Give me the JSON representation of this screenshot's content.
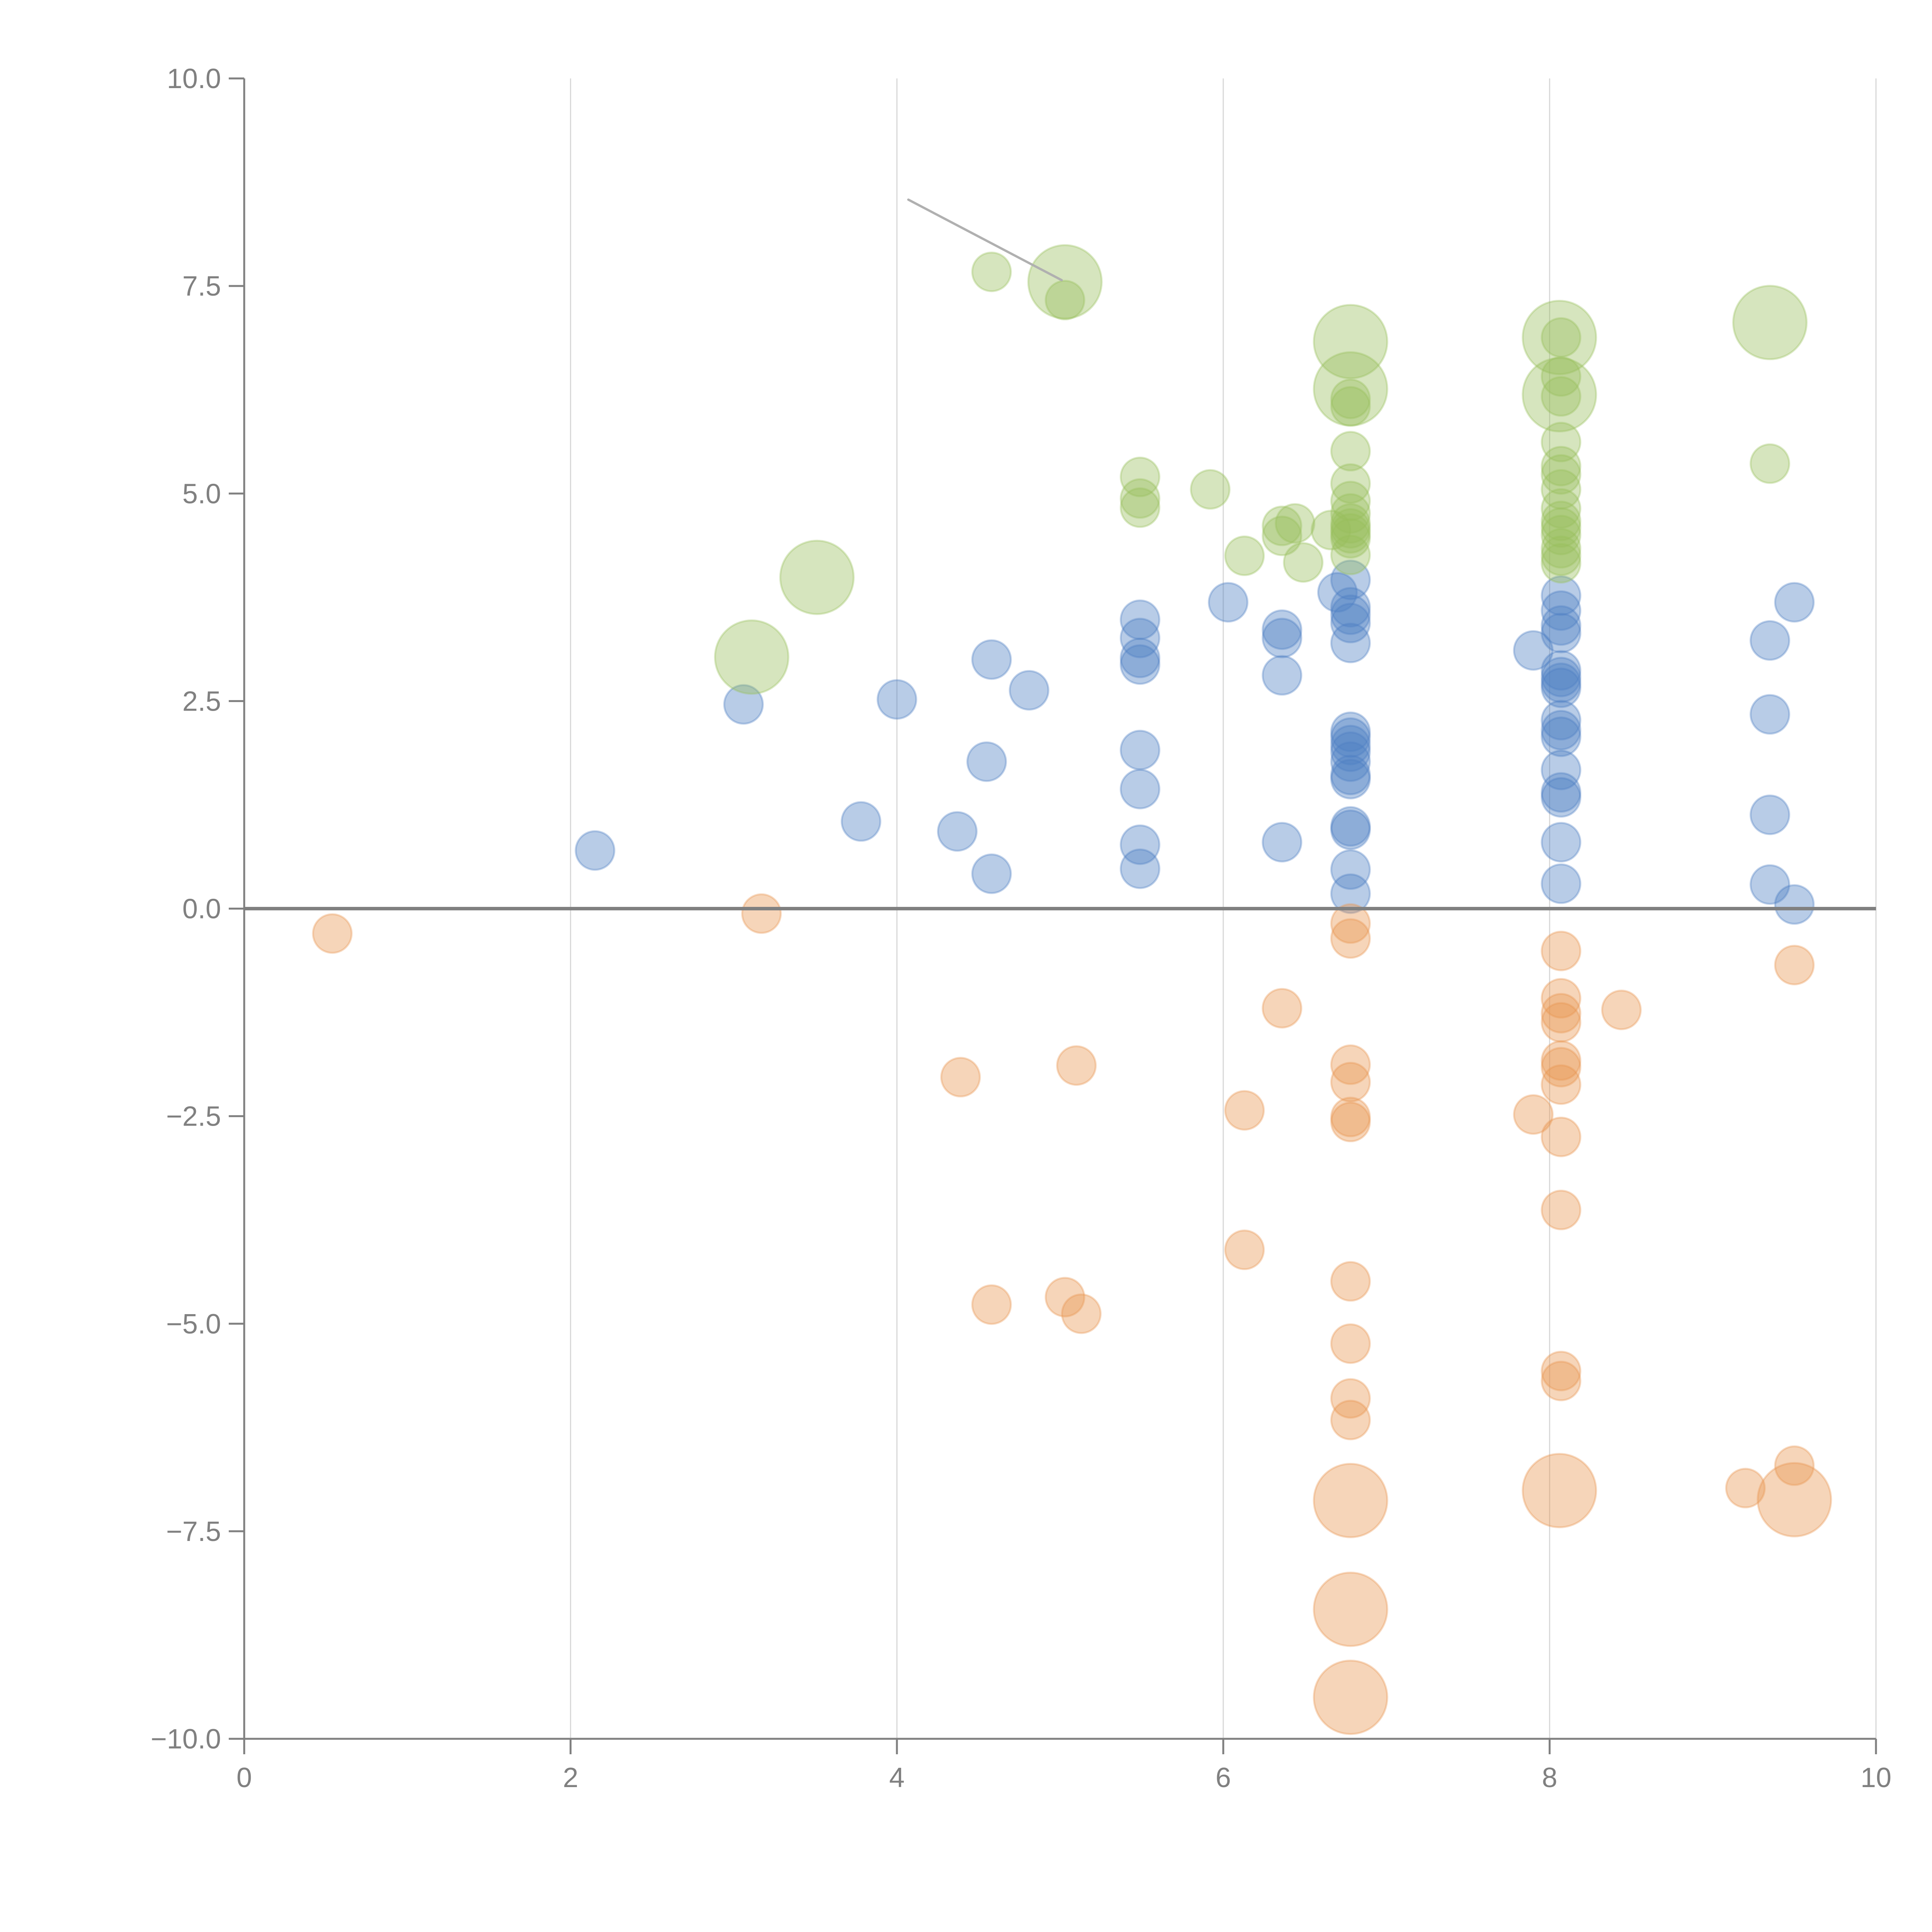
{
  "chart_data": {
    "type": "scatter",
    "title": "",
    "xlabel": "",
    "ylabel": "",
    "xlim": [
      0,
      10
    ],
    "ylim": [
      -10,
      10
    ],
    "x_ticks": [
      "0",
      "2",
      "4",
      "6",
      "8",
      "10"
    ],
    "x_tick_values": [
      0,
      2,
      4,
      6,
      8,
      10
    ],
    "y_ticks": [
      "10.0",
      "7.5",
      "5.0",
      "2.5",
      "0.0",
      "−2.5",
      "−5.0",
      "−7.5",
      "−10.0"
    ],
    "y_tick_values": [
      10,
      7.5,
      5,
      2.5,
      0,
      -2.5,
      -5,
      -7.5,
      -10
    ],
    "grid": "vertical",
    "zero_line": true,
    "legend": "none",
    "size_note": "size: 1 = small bubble, 2 = large bubble",
    "series": [
      {
        "name": "blue",
        "color": "#4e7fc4",
        "points": [
          [
            2.15,
            0.7,
            1
          ],
          [
            3.06,
            2.46,
            1
          ],
          [
            3.78,
            1.05,
            1
          ],
          [
            4.0,
            2.52,
            1
          ],
          [
            4.37,
            0.93,
            1
          ],
          [
            4.55,
            1.77,
            1
          ],
          [
            4.58,
            3.0,
            1
          ],
          [
            4.58,
            0.42,
            1
          ],
          [
            4.81,
            2.63,
            1
          ],
          [
            5.49,
            3.48,
            1
          ],
          [
            5.49,
            3.26,
            1
          ],
          [
            5.49,
            3.02,
            1
          ],
          [
            5.49,
            2.94,
            1
          ],
          [
            5.49,
            1.91,
            1
          ],
          [
            5.49,
            1.44,
            1
          ],
          [
            5.49,
            0.77,
            1
          ],
          [
            5.49,
            0.48,
            1
          ],
          [
            6.03,
            3.69,
            1
          ],
          [
            6.36,
            3.36,
            1
          ],
          [
            6.36,
            3.26,
            1
          ],
          [
            6.36,
            2.81,
            1
          ],
          [
            6.36,
            0.8,
            1
          ],
          [
            6.7,
            3.81,
            1
          ],
          [
            6.78,
            3.96,
            1
          ],
          [
            6.78,
            3.63,
            1
          ],
          [
            6.78,
            3.54,
            1
          ],
          [
            6.78,
            3.44,
            1
          ],
          [
            6.78,
            3.2,
            1
          ],
          [
            6.78,
            2.13,
            1
          ],
          [
            6.78,
            2.06,
            1
          ],
          [
            6.78,
            1.97,
            1
          ],
          [
            6.78,
            1.89,
            1
          ],
          [
            6.78,
            1.77,
            1
          ],
          [
            6.78,
            1.61,
            1
          ],
          [
            6.78,
            1.56,
            1
          ],
          [
            6.78,
            0.99,
            1
          ],
          [
            6.78,
            0.95,
            1
          ],
          [
            6.78,
            0.47,
            1
          ],
          [
            6.78,
            0.18,
            1
          ],
          [
            7.9,
            3.11,
            1
          ],
          [
            8.07,
            3.77,
            1
          ],
          [
            8.07,
            3.59,
            1
          ],
          [
            8.07,
            3.41,
            1
          ],
          [
            8.07,
            3.32,
            1
          ],
          [
            8.07,
            2.87,
            1
          ],
          [
            8.07,
            2.79,
            1
          ],
          [
            8.07,
            2.72,
            1
          ],
          [
            8.07,
            2.66,
            1
          ],
          [
            8.07,
            2.27,
            1
          ],
          [
            8.07,
            2.15,
            1
          ],
          [
            8.07,
            2.07,
            1
          ],
          [
            8.07,
            1.67,
            1
          ],
          [
            8.07,
            1.4,
            1
          ],
          [
            8.07,
            1.34,
            1
          ],
          [
            8.07,
            0.8,
            1
          ],
          [
            8.07,
            0.3,
            1
          ],
          [
            9.35,
            3.23,
            1
          ],
          [
            9.35,
            2.34,
            1
          ],
          [
            9.35,
            1.13,
            1
          ],
          [
            9.35,
            0.29,
            1
          ],
          [
            9.5,
            3.69,
            1
          ],
          [
            9.5,
            0.05,
            1
          ]
        ]
      },
      {
        "name": "orange",
        "color": "#e8954f",
        "points": [
          [
            0.54,
            -0.3,
            1
          ],
          [
            3.17,
            -0.06,
            1
          ],
          [
            4.39,
            -2.03,
            1
          ],
          [
            4.58,
            -4.77,
            1
          ],
          [
            5.03,
            -4.68,
            1
          ],
          [
            5.1,
            -1.89,
            1
          ],
          [
            5.13,
            -4.88,
            1
          ],
          [
            6.13,
            -2.43,
            1
          ],
          [
            6.13,
            -4.11,
            1
          ],
          [
            6.36,
            -1.2,
            1
          ],
          [
            6.78,
            -0.18,
            1
          ],
          [
            6.78,
            -0.36,
            1
          ],
          [
            6.78,
            -1.88,
            1
          ],
          [
            6.78,
            -2.09,
            1
          ],
          [
            6.78,
            -2.51,
            1
          ],
          [
            6.78,
            -2.57,
            1
          ],
          [
            6.78,
            -4.49,
            1
          ],
          [
            6.78,
            -5.24,
            1
          ],
          [
            6.78,
            -5.9,
            1
          ],
          [
            6.78,
            -6.16,
            1
          ],
          [
            6.78,
            -7.13,
            2
          ],
          [
            6.78,
            -8.44,
            2
          ],
          [
            6.78,
            -9.5,
            2
          ],
          [
            7.9,
            -2.48,
            1
          ],
          [
            8.07,
            -0.51,
            1
          ],
          [
            8.07,
            -1.08,
            1
          ],
          [
            8.07,
            -1.26,
            1
          ],
          [
            8.07,
            -1.37,
            1
          ],
          [
            8.07,
            -1.83,
            1
          ],
          [
            8.07,
            -1.91,
            1
          ],
          [
            8.07,
            -2.12,
            1
          ],
          [
            8.07,
            -2.75,
            1
          ],
          [
            8.07,
            -3.63,
            1
          ],
          [
            8.07,
            -5.57,
            1
          ],
          [
            8.07,
            -5.69,
            1
          ],
          [
            8.06,
            -7.01,
            2
          ],
          [
            8.44,
            -1.22,
            1
          ],
          [
            9.2,
            -6.98,
            1
          ],
          [
            9.5,
            -0.68,
            1
          ],
          [
            9.5,
            -6.71,
            1
          ],
          [
            9.5,
            -7.12,
            2
          ]
        ]
      },
      {
        "name": "green",
        "color": "#98bf5c",
        "points": [
          [
            3.11,
            3.03,
            2
          ],
          [
            3.51,
            3.99,
            2
          ],
          [
            4.58,
            7.67,
            1
          ],
          [
            5.03,
            7.33,
            1
          ],
          [
            5.03,
            7.55,
            2
          ],
          [
            5.49,
            5.2,
            1
          ],
          [
            5.49,
            4.94,
            1
          ],
          [
            5.49,
            4.83,
            1
          ],
          [
            5.92,
            5.05,
            1
          ],
          [
            6.13,
            4.25,
            1
          ],
          [
            6.36,
            4.61,
            1
          ],
          [
            6.36,
            4.49,
            1
          ],
          [
            6.44,
            4.64,
            1
          ],
          [
            6.49,
            4.17,
            1
          ],
          [
            6.66,
            4.56,
            1
          ],
          [
            6.78,
            6.83,
            2
          ],
          [
            6.78,
            6.26,
            2
          ],
          [
            6.78,
            6.14,
            1
          ],
          [
            6.78,
            6.05,
            1
          ],
          [
            6.78,
            5.51,
            1
          ],
          [
            6.78,
            5.12,
            1
          ],
          [
            6.78,
            4.91,
            1
          ],
          [
            6.78,
            4.76,
            1
          ],
          [
            6.78,
            4.64,
            1
          ],
          [
            6.78,
            4.58,
            1
          ],
          [
            6.78,
            4.52,
            1
          ],
          [
            6.78,
            4.46,
            1
          ],
          [
            6.78,
            4.26,
            1
          ],
          [
            8.06,
            6.88,
            2
          ],
          [
            8.06,
            6.19,
            2
          ],
          [
            8.07,
            6.88,
            1
          ],
          [
            8.07,
            6.41,
            1
          ],
          [
            8.07,
            6.17,
            1
          ],
          [
            8.07,
            5.62,
            1
          ],
          [
            8.07,
            5.33,
            1
          ],
          [
            8.07,
            5.23,
            1
          ],
          [
            8.07,
            5.05,
            1
          ],
          [
            8.07,
            4.82,
            1
          ],
          [
            8.07,
            4.67,
            1
          ],
          [
            8.07,
            4.59,
            1
          ],
          [
            8.07,
            4.5,
            1
          ],
          [
            8.07,
            4.34,
            1
          ],
          [
            8.07,
            4.25,
            1
          ],
          [
            8.07,
            4.16,
            1
          ],
          [
            9.35,
            7.06,
            2
          ],
          [
            9.35,
            5.36,
            1
          ]
        ]
      }
    ],
    "annotations": [
      {
        "type": "leader-line",
        "from": [
          4.07,
          8.54
        ],
        "to": [
          5.01,
          7.57
        ]
      }
    ]
  }
}
